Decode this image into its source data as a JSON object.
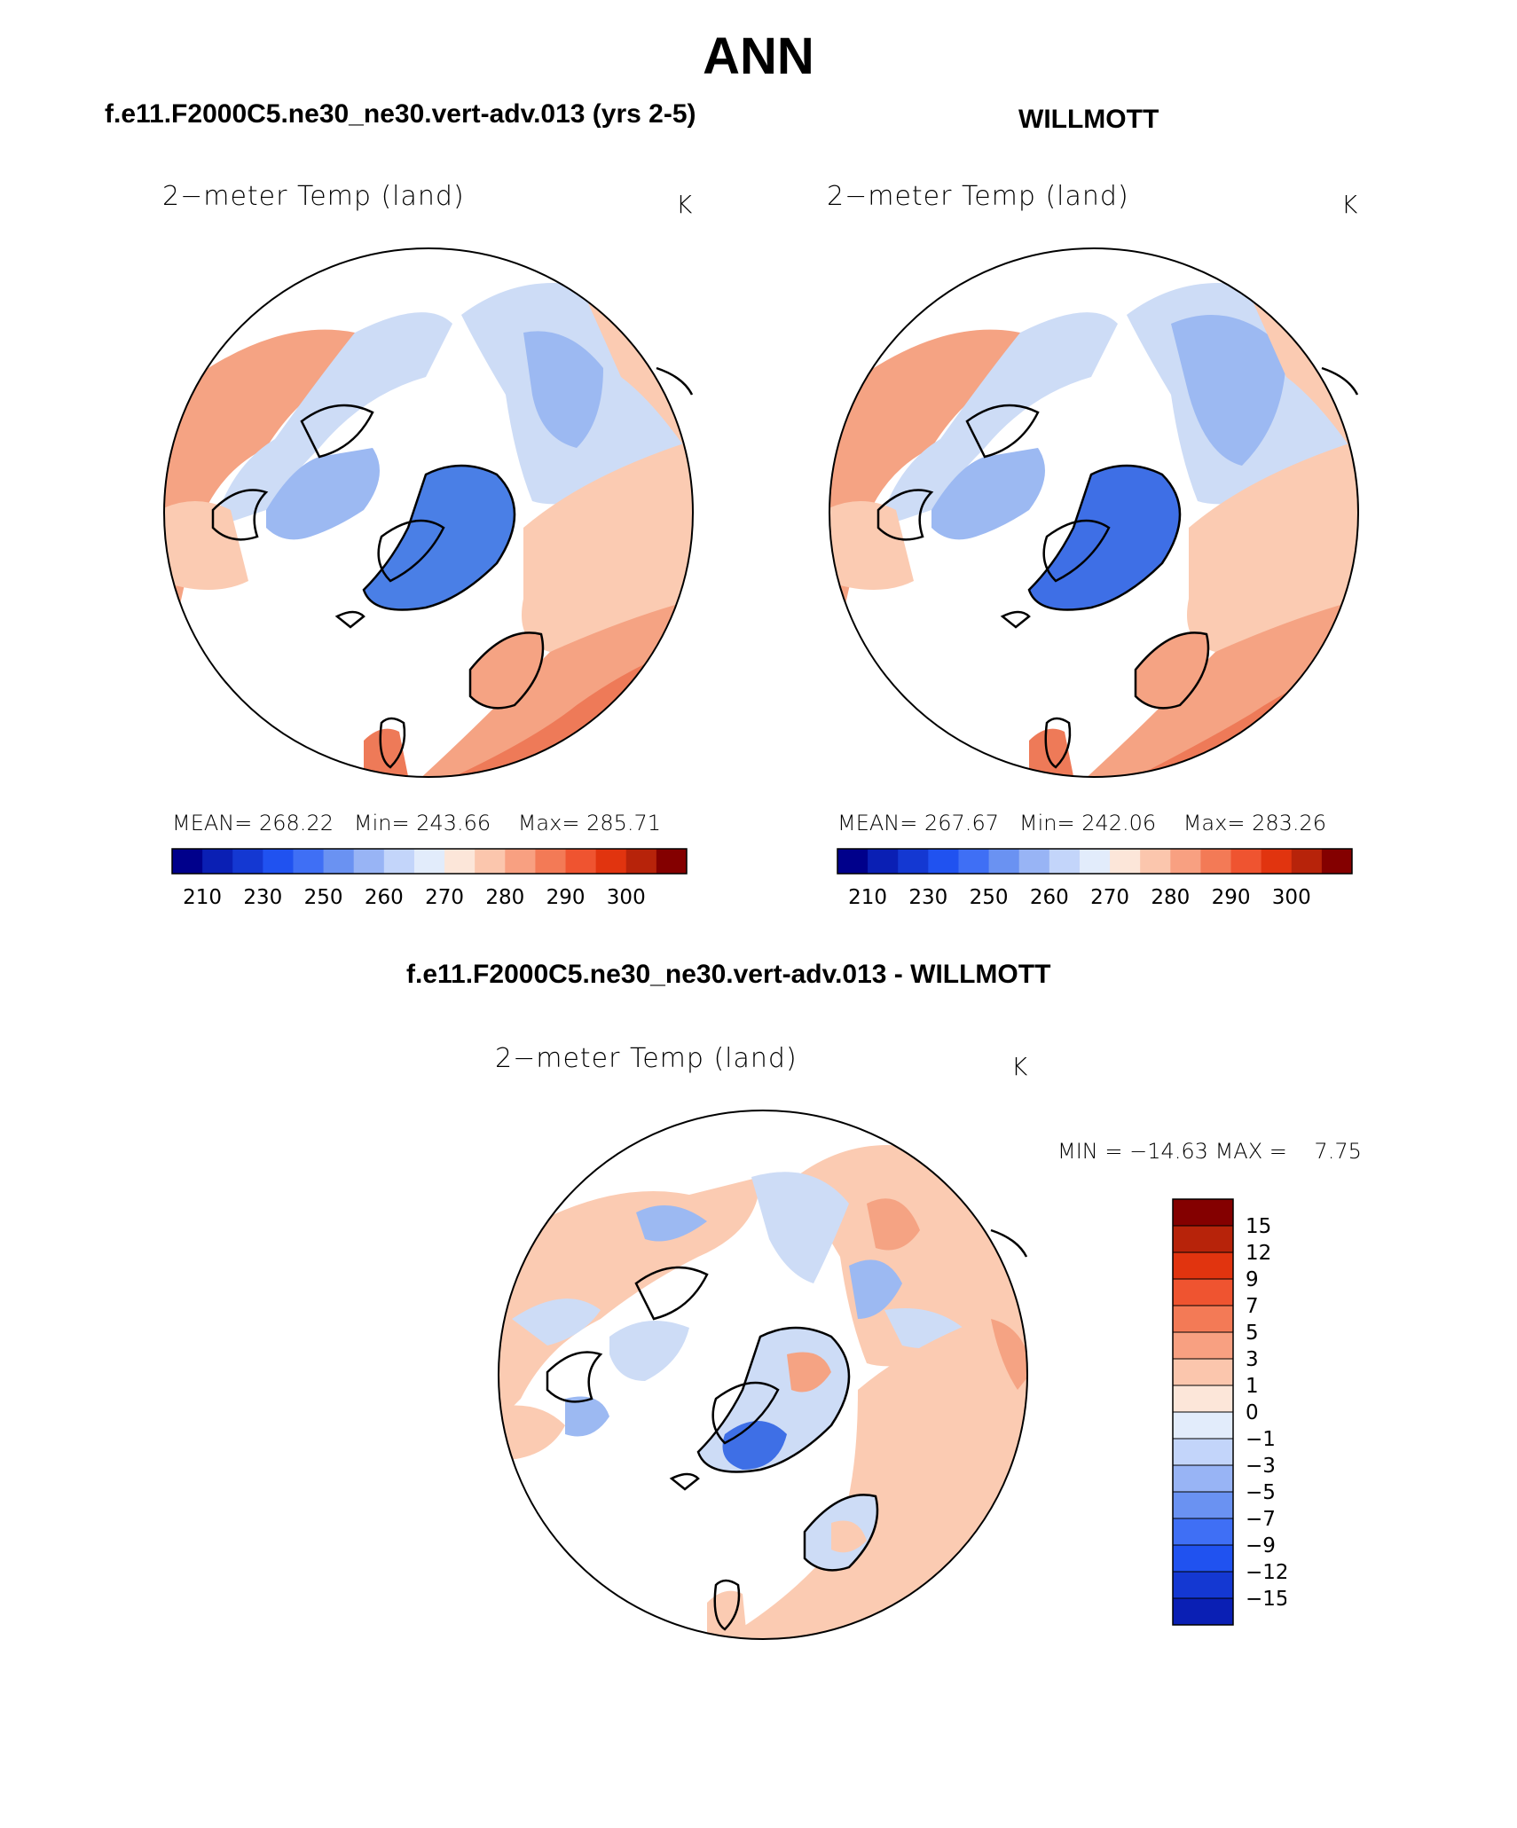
{
  "title": "ANN",
  "panels": [
    {
      "id": "model",
      "case_title": "f.e11.F2000C5.ne30_ne30.vert-adv.013 (yrs 2-5)",
      "variable": "2−meter Temp (land)",
      "units": "K",
      "stats": {
        "mean_label": "MEAN=",
        "mean": "268.22",
        "min_label": "Min=",
        "min": "243.66",
        "max_label": "Max=",
        "max": "285.71"
      }
    },
    {
      "id": "obs",
      "case_title": "WILLMOTT",
      "variable": "2−meter Temp (land)",
      "units": "K",
      "stats": {
        "mean_label": "MEAN=",
        "mean": "267.67",
        "min_label": "Min=",
        "min": "242.06",
        "max_label": "Max=",
        "max": "283.26"
      }
    },
    {
      "id": "diff",
      "case_title": "f.e11.F2000C5.ne30_ne30.vert-adv.013 - WILLMOTT",
      "variable": "2−meter Temp (land)",
      "units": "K",
      "stats": {
        "min_label": "MIN =",
        "min": "−14.63",
        "max_label": "MAX =",
        "max": "7.75"
      }
    }
  ],
  "colorbars": {
    "absolute": {
      "colors": [
        "#00008b",
        "#0a1fb4",
        "#1438d2",
        "#2052f0",
        "#3f6ff5",
        "#6a92f2",
        "#98b4f5",
        "#c3d5fa",
        "#e2ecfb",
        "#fce6d9",
        "#fbc6ad",
        "#f8a081",
        "#f37a56",
        "#ef5430",
        "#e1340f",
        "#b7230a",
        "#840000"
      ],
      "tick_labels": [
        "210",
        "230",
        "250",
        "260",
        "270",
        "280",
        "290",
        "300"
      ]
    },
    "difference": {
      "colors": [
        "#840000",
        "#b7230a",
        "#e1340f",
        "#ef5430",
        "#f37a56",
        "#f8a081",
        "#fbc6ad",
        "#fce6d9",
        "#e2ecfb",
        "#c3d5fa",
        "#98b4f5",
        "#6a92f2",
        "#3f6ff5",
        "#2052f0",
        "#1438d2",
        "#0a1fb4"
      ],
      "tick_labels": [
        "15",
        "12",
        "9",
        "7",
        "5",
        "3",
        "1",
        "0",
        "−1",
        "−3",
        "−5",
        "−7",
        "−9",
        "−12",
        "−15"
      ]
    }
  },
  "map_legend_colors": {
    "land_cold": "#9cb9f2",
    "land_cool": "#cddcf6",
    "land_mild": "#fbcbb2",
    "land_warm": "#f5a383",
    "land_hot": "#ee7a58",
    "greenland": "#4a7fe6",
    "coast": "#000000"
  }
}
